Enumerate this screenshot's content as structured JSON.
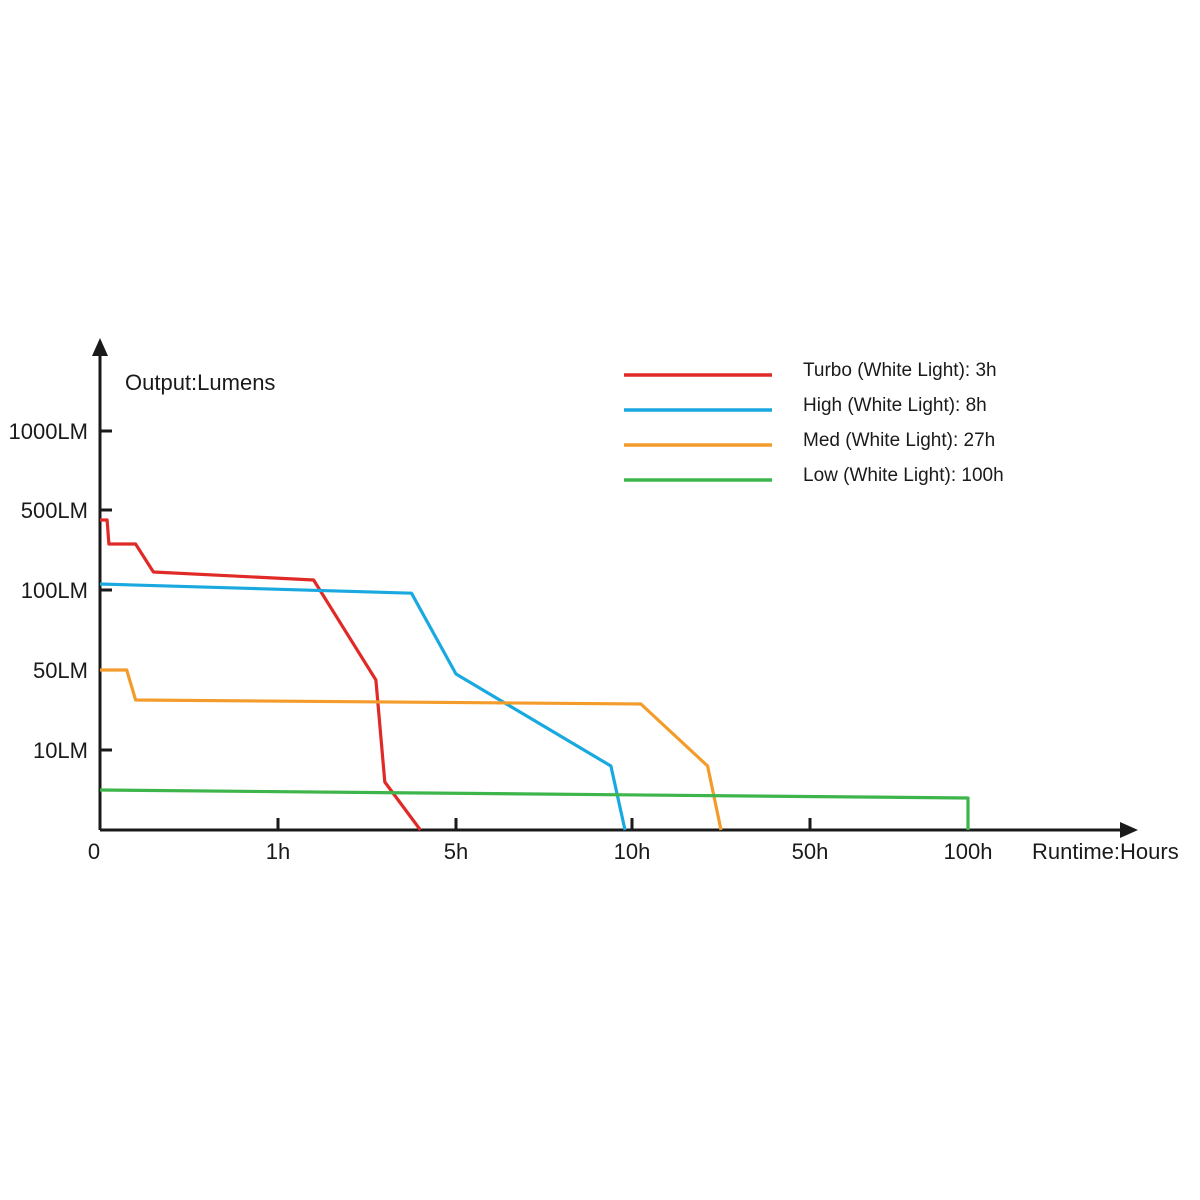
{
  "chart_data": {
    "type": "line",
    "ylabel": "Output:Lumens",
    "xlabel": "Runtime:Hours",
    "x_ticks": [
      "0",
      "1h",
      "5h",
      "10h",
      "50h",
      "100h"
    ],
    "y_ticks": [
      "10LM",
      "50LM",
      "100LM",
      "500LM",
      "1000LM"
    ],
    "grid": false,
    "legend_position": "top-right",
    "series": [
      {
        "name": "Turbo (White Light): 3h",
        "color": "#e02a27",
        "points": [
          {
            "x": "0",
            "y": 450
          },
          {
            "x": "0.04h",
            "y": 450
          },
          {
            "x": "0.05h",
            "y": 330
          },
          {
            "x": "0.2h",
            "y": 330
          },
          {
            "x": "0.3h",
            "y": 190
          },
          {
            "x": "1.8h",
            "y": 150
          },
          {
            "x": "3.2h",
            "y": 45
          },
          {
            "x": "3.4h",
            "y": 6
          },
          {
            "x": "4.2h",
            "y": 0
          }
        ]
      },
      {
        "name": "High (White Light): 8h",
        "color": "#19a9e0",
        "points": [
          {
            "x": "0",
            "y": 130
          },
          {
            "x": "4h",
            "y": 98
          },
          {
            "x": "5h",
            "y": 48
          },
          {
            "x": "9.4h",
            "y": 8
          },
          {
            "x": "9.8h",
            "y": 0
          }
        ]
      },
      {
        "name": "Med (White Light): 27h",
        "color": "#f39c2c",
        "points": [
          {
            "x": "0",
            "y": 50
          },
          {
            "x": "0.15h",
            "y": 50
          },
          {
            "x": "0.2h",
            "y": 35
          },
          {
            "x": "12h",
            "y": 33
          },
          {
            "x": "27h",
            "y": 8
          },
          {
            "x": "30h",
            "y": 0
          }
        ]
      },
      {
        "name": "Low (White Light): 100h",
        "color": "#3db54a",
        "points": [
          {
            "x": "0",
            "y": 5
          },
          {
            "x": "100h",
            "y": 4
          },
          {
            "x": "100h",
            "y": 0
          }
        ]
      }
    ]
  }
}
